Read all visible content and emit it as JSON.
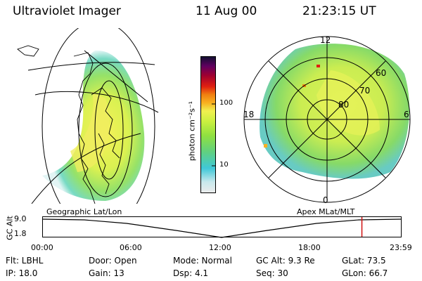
{
  "header": {
    "instrument": "Ultraviolet Imager",
    "date": "11 Aug 00",
    "time": "21:23:15 UT"
  },
  "colorbar": {
    "unit_label": "photon cm⁻²s⁻¹",
    "ticks": [
      "100",
      "10"
    ],
    "colors": [
      "#e8f4f4",
      "#c8e8ec",
      "#40c8d8",
      "#60d080",
      "#90e040",
      "#c8f040",
      "#f0f050",
      "#f8b020",
      "#f08010",
      "#e02010",
      "#a00030",
      "#600060",
      "#202060"
    ]
  },
  "polar": {
    "mlt_labels": {
      "top": "12",
      "left": "18",
      "right": "6",
      "bottom": "0"
    },
    "lat_labels": [
      "60",
      "70",
      "80"
    ]
  },
  "labels": {
    "left_panel": "Geographic Lat/Lon",
    "right_panel": "Apex MLat/MLT"
  },
  "alt_plot": {
    "axis_title": "GC Alt",
    "y_ticks": [
      "9.0",
      "1.8"
    ],
    "x_ticks": [
      "00:00",
      "06:00",
      "12:00",
      "18:00",
      "23:59"
    ],
    "current_marker_hour": 21.39
  },
  "footer": {
    "flt": "Flt: LBHL",
    "door": "Door: Open",
    "mode": "Mode: Normal",
    "gc_alt": "GC Alt: 9.3 Re",
    "glat": "GLat:  73.5",
    "ip": "IP: 18.0",
    "gain": "Gain: 13",
    "dsp": "Dsp:    4.1",
    "seq": "Seq: 30",
    "glon": "GLon:  66.7"
  }
}
